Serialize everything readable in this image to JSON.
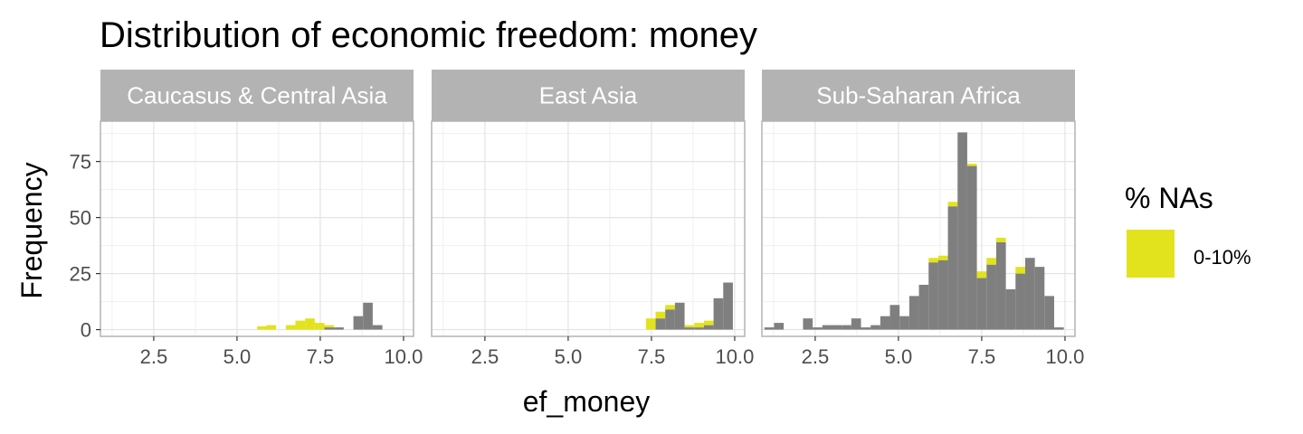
{
  "chart_data": {
    "type": "bar",
    "title": "Distribution of economic freedom: money",
    "xlabel": "ef_money",
    "ylabel": "Frequency",
    "xlim": [
      0.9,
      10.3
    ],
    "ylim": [
      -3,
      93
    ],
    "x_ticks": [
      2.5,
      5.0,
      7.5,
      10.0
    ],
    "x_tick_labels": [
      "2.5",
      "5.0",
      "7.5",
      "10.0"
    ],
    "y_ticks": [
      0,
      25,
      50,
      75
    ],
    "y_tick_labels": [
      "0",
      "25",
      "50",
      "75"
    ],
    "grid": true,
    "bin_width": 0.29,
    "legend": {
      "title": "% NAs",
      "position": "right",
      "entries": [
        {
          "label": "0-10%",
          "color": "#e2e31c"
        }
      ]
    },
    "colors": {
      "bars": "#7f7f7f",
      "na": "#e2e31c",
      "strip": "#b3b3b3",
      "grid": "#e3e3e3",
      "panel_border": "#b3b3b3"
    },
    "panels": [
      {
        "label": "Caucasus & Central Asia",
        "bins": [
          {
            "x": 5.75,
            "total": 1.5,
            "na": 1.5
          },
          {
            "x": 6.03,
            "total": 2,
            "na": 2
          },
          {
            "x": 6.61,
            "total": 2,
            "na": 2
          },
          {
            "x": 6.9,
            "total": 4,
            "na": 4
          },
          {
            "x": 7.19,
            "total": 5,
            "na": 5
          },
          {
            "x": 7.48,
            "total": 3,
            "na": 3
          },
          {
            "x": 7.77,
            "total": 2,
            "na": 1
          },
          {
            "x": 8.06,
            "total": 1,
            "na": 0
          },
          {
            "x": 8.64,
            "total": 6,
            "na": 0
          },
          {
            "x": 8.93,
            "total": 12,
            "na": 0
          },
          {
            "x": 9.22,
            "total": 2,
            "na": 0
          }
        ]
      },
      {
        "label": "East Asia",
        "bins": [
          {
            "x": 7.48,
            "total": 5,
            "na": 5
          },
          {
            "x": 7.77,
            "total": 8,
            "na": 3
          },
          {
            "x": 8.06,
            "total": 11,
            "na": 2
          },
          {
            "x": 8.35,
            "total": 12,
            "na": 0
          },
          {
            "x": 8.64,
            "total": 2,
            "na": 1
          },
          {
            "x": 8.93,
            "total": 3,
            "na": 2
          },
          {
            "x": 9.22,
            "total": 4,
            "na": 2
          },
          {
            "x": 9.51,
            "total": 14,
            "na": 0
          },
          {
            "x": 9.8,
            "total": 21,
            "na": 0
          }
        ]
      },
      {
        "label": "Sub-Saharan Africa",
        "bins": [
          {
            "x": 1.12,
            "total": 1,
            "na": 0
          },
          {
            "x": 1.41,
            "total": 3,
            "na": 0
          },
          {
            "x": 2.28,
            "total": 5,
            "na": 0
          },
          {
            "x": 2.57,
            "total": 1,
            "na": 0
          },
          {
            "x": 2.86,
            "total": 2,
            "na": 0
          },
          {
            "x": 3.15,
            "total": 2,
            "na": 0
          },
          {
            "x": 3.44,
            "total": 2,
            "na": 0
          },
          {
            "x": 3.73,
            "total": 5,
            "na": 0
          },
          {
            "x": 4.02,
            "total": 1,
            "na": 0
          },
          {
            "x": 4.31,
            "total": 2,
            "na": 0
          },
          {
            "x": 4.6,
            "total": 6,
            "na": 0
          },
          {
            "x": 4.89,
            "total": 11,
            "na": 0
          },
          {
            "x": 5.18,
            "total": 6,
            "na": 0
          },
          {
            "x": 5.47,
            "total": 15,
            "na": 0
          },
          {
            "x": 5.76,
            "total": 20,
            "na": 0
          },
          {
            "x": 6.05,
            "total": 32,
            "na": 2
          },
          {
            "x": 6.34,
            "total": 33,
            "na": 2
          },
          {
            "x": 6.63,
            "total": 57,
            "na": 2
          },
          {
            "x": 6.92,
            "total": 88,
            "na": 0
          },
          {
            "x": 7.21,
            "total": 74,
            "na": 1
          },
          {
            "x": 7.5,
            "total": 26,
            "na": 3
          },
          {
            "x": 7.79,
            "total": 32,
            "na": 3
          },
          {
            "x": 8.08,
            "total": 41,
            "na": 2
          },
          {
            "x": 8.37,
            "total": 18,
            "na": 0
          },
          {
            "x": 8.66,
            "total": 28,
            "na": 3
          },
          {
            "x": 8.95,
            "total": 32,
            "na": 0
          },
          {
            "x": 9.24,
            "total": 28,
            "na": 0
          },
          {
            "x": 9.53,
            "total": 15,
            "na": 0
          },
          {
            "x": 9.82,
            "total": 1,
            "na": 0
          }
        ]
      }
    ]
  }
}
